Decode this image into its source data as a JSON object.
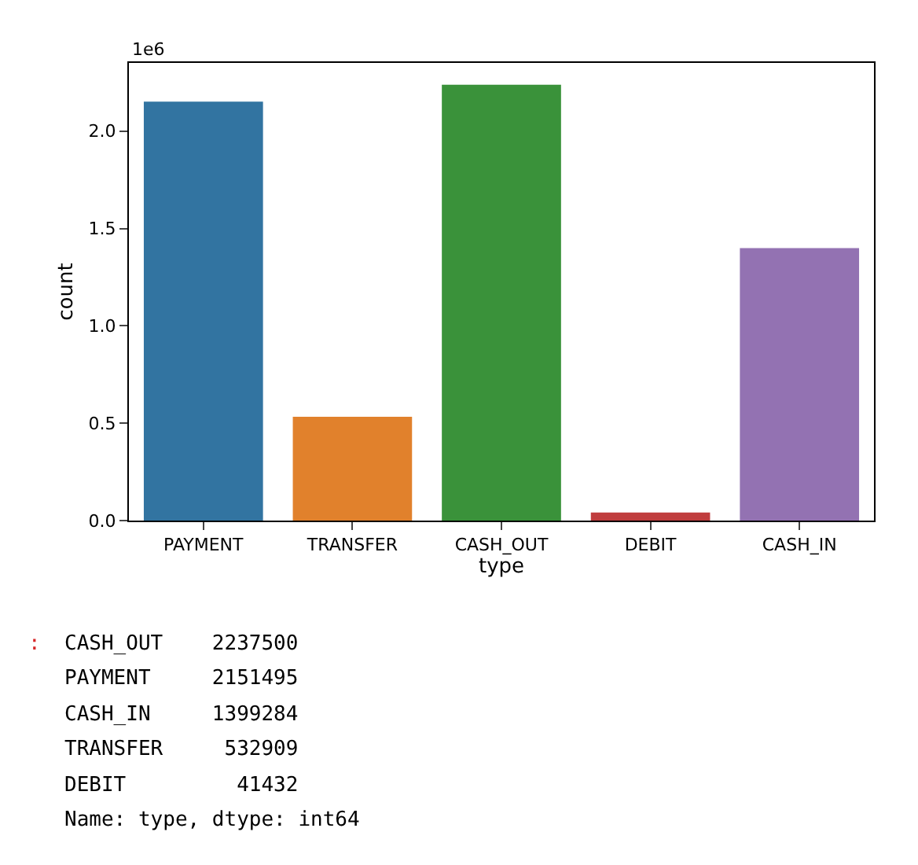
{
  "chart_data": {
    "type": "bar",
    "xlabel": "type",
    "ylabel": "count",
    "categories": [
      "PAYMENT",
      "TRANSFER",
      "CASH_OUT",
      "DEBIT",
      "CASH_IN"
    ],
    "values": [
      2.151495,
      0.532909,
      2.2375,
      0.041432,
      1.399284
    ],
    "colors": [
      "#3274a1",
      "#e1812c",
      "#3a923a",
      "#c03d3e",
      "#9372b2"
    ],
    "ylim": [
      0,
      2.35
    ],
    "yticks": [
      {
        "value": 0,
        "label": "0.0"
      },
      {
        "value": 0.5,
        "label": "0.5"
      },
      {
        "value": 1,
        "label": "1.0"
      },
      {
        "value": 1.5,
        "label": "1.5"
      },
      {
        "value": 2,
        "label": "2.0"
      }
    ],
    "annotations": [
      "1e6",
      ":",
      "CASH_OUT    2237500",
      "PAYMENT     2151495",
      "CASH_IN     1399284",
      "TRANSFER     532909",
      "DEBIT         41432",
      "Name: type, dtype: int64"
    ]
  }
}
